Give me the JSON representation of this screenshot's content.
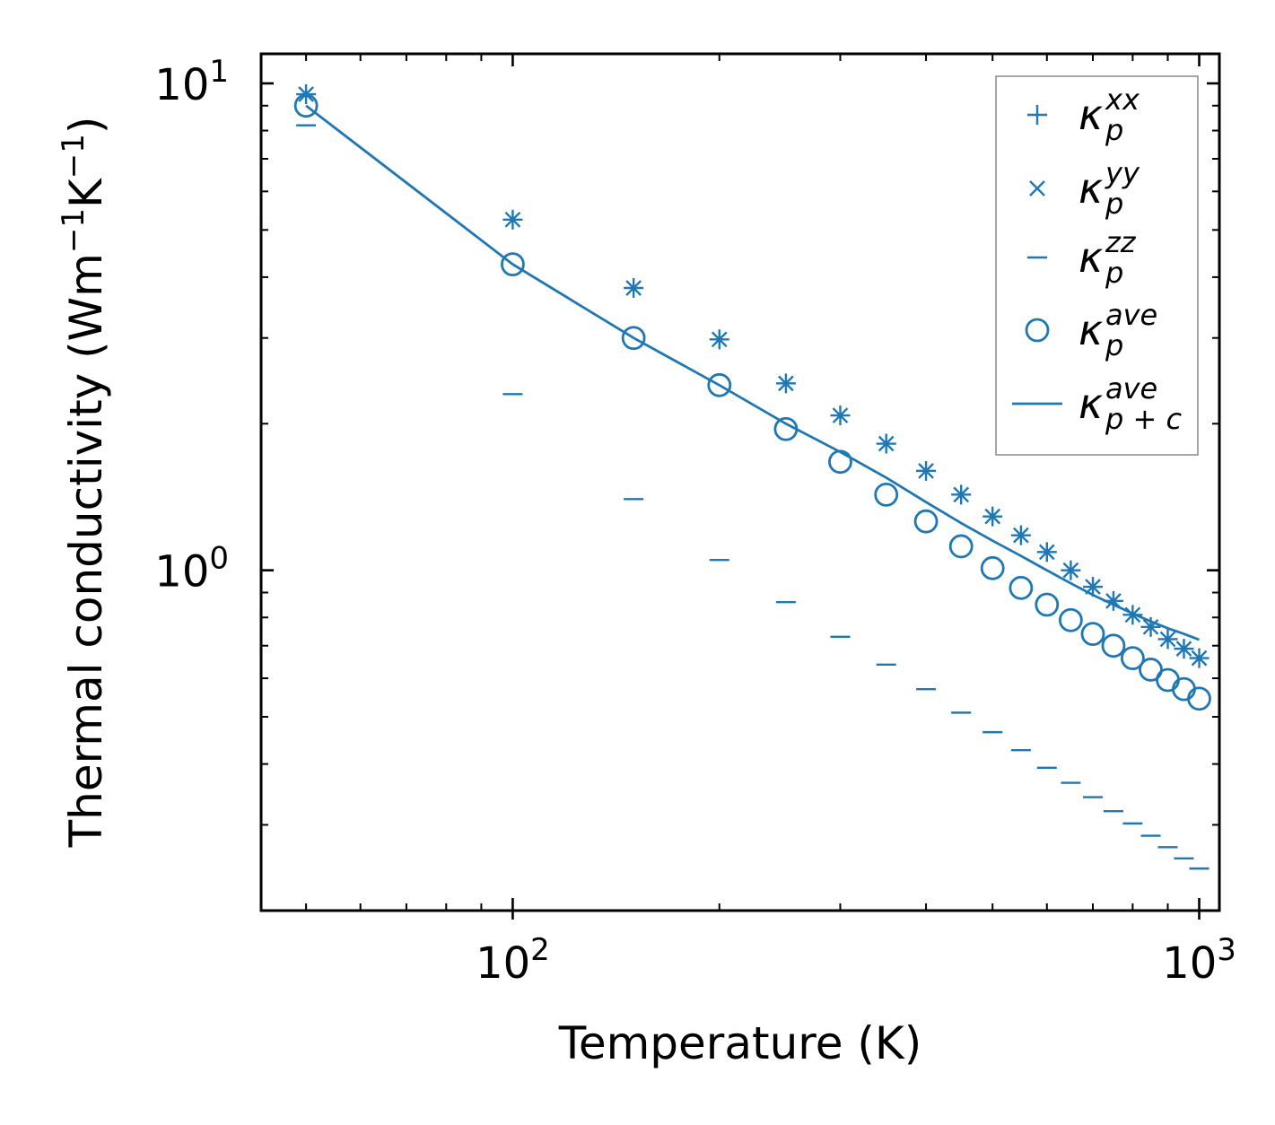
{
  "chart_data": {
    "type": "scatter",
    "title": "",
    "xlabel": "Temperature (K)",
    "ylabel": "Thermal conductivity (Wm⁻¹K⁻¹)",
    "xscale": "log",
    "yscale": "log",
    "xlim": [
      43,
      1070
    ],
    "ylim": [
      0.2,
      11.5
    ],
    "x_ticks": [
      {
        "value": 100,
        "base": "10",
        "exp": "2"
      },
      {
        "value": 1000,
        "base": "10",
        "exp": "3"
      }
    ],
    "y_ticks": [
      {
        "value": 1,
        "base": "10",
        "exp": "0"
      },
      {
        "value": 10,
        "base": "10",
        "exp": "1"
      }
    ],
    "legend_position": "top-right",
    "color": "#1f77b4",
    "x": [
      50,
      100,
      150,
      200,
      250,
      300,
      350,
      400,
      450,
      500,
      550,
      600,
      650,
      700,
      750,
      800,
      850,
      900,
      950,
      1000
    ],
    "series": [
      {
        "name": "xx",
        "marker": "plus",
        "values": [
          9.5,
          5.25,
          3.8,
          2.98,
          2.42,
          2.08,
          1.82,
          1.6,
          1.43,
          1.29,
          1.18,
          1.09,
          1.0,
          0.925,
          0.865,
          0.81,
          0.765,
          0.722,
          0.69,
          0.66
        ]
      },
      {
        "name": "yy",
        "marker": "x",
        "values": [
          9.5,
          5.25,
          3.8,
          2.98,
          2.42,
          2.08,
          1.82,
          1.6,
          1.43,
          1.29,
          1.18,
          1.09,
          1.0,
          0.925,
          0.865,
          0.81,
          0.765,
          0.722,
          0.69,
          0.66
        ]
      },
      {
        "name": "zz",
        "marker": "hline",
        "values": [
          8.2,
          2.3,
          1.4,
          1.05,
          0.86,
          0.73,
          0.64,
          0.57,
          0.51,
          0.465,
          0.427,
          0.393,
          0.366,
          0.342,
          0.32,
          0.302,
          0.285,
          0.27,
          0.256,
          0.244
        ]
      },
      {
        "name": "ave",
        "marker": "circle",
        "values": [
          9.0,
          4.25,
          3.0,
          2.4,
          1.95,
          1.67,
          1.43,
          1.26,
          1.12,
          1.01,
          0.92,
          0.85,
          0.79,
          0.74,
          0.7,
          0.66,
          0.625,
          0.595,
          0.57,
          0.545
        ]
      },
      {
        "name": "ave_pc",
        "marker": "line",
        "values": [
          9.0,
          4.25,
          3.0,
          2.4,
          2.0,
          1.75,
          1.55,
          1.38,
          1.25,
          1.15,
          1.07,
          1.0,
          0.94,
          0.89,
          0.85,
          0.815,
          0.785,
          0.76,
          0.74,
          0.72
        ]
      }
    ],
    "legend": [
      {
        "marker": "plus",
        "base": "κ",
        "sup": "xx",
        "sub": "p"
      },
      {
        "marker": "x",
        "base": "κ",
        "sup": "yy",
        "sub": "p"
      },
      {
        "marker": "hline",
        "base": "κ",
        "sup": "zz",
        "sub": "p"
      },
      {
        "marker": "circle",
        "base": "κ",
        "sup": "ave",
        "sub": "p"
      },
      {
        "marker": "line",
        "base": "κ",
        "sup": "ave",
        "sub": "p + c"
      }
    ]
  }
}
